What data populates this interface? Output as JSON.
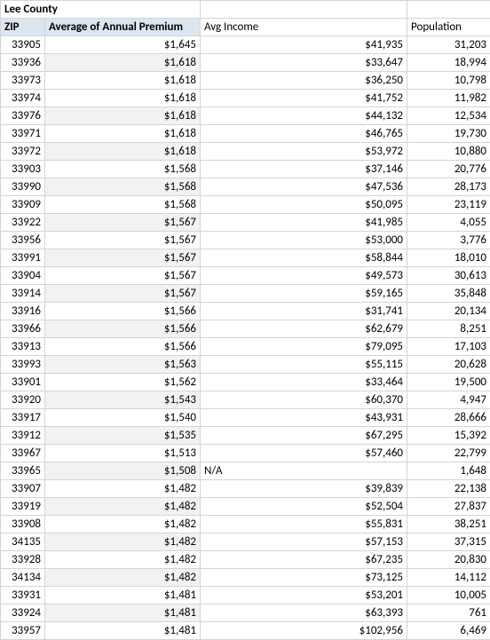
{
  "table": {
    "title": "Lee County",
    "headers": {
      "zip": "ZIP",
      "premium": "Average of Annual Premium",
      "income": "Avg Income",
      "population": "Population"
    },
    "rows": [
      {
        "zip": "33905",
        "premium": "$1,645",
        "income": "$41,935",
        "pop": "31,203",
        "band": false
      },
      {
        "zip": "33936",
        "premium": "$1,618",
        "income": "$33,647",
        "pop": "18,994",
        "band": true
      },
      {
        "zip": "33973",
        "premium": "$1,618",
        "income": "$36,250",
        "pop": "10,798",
        "band": false
      },
      {
        "zip": "33974",
        "premium": "$1,618",
        "income": "$41,752",
        "pop": "11,982",
        "band": false
      },
      {
        "zip": "33976",
        "premium": "$1,618",
        "income": "$44,132",
        "pop": "12,534",
        "band": true
      },
      {
        "zip": "33971",
        "premium": "$1,618",
        "income": "$46,765",
        "pop": "19,730",
        "band": false
      },
      {
        "zip": "33972",
        "premium": "$1,618",
        "income": "$53,972",
        "pop": "10,880",
        "band": true
      },
      {
        "zip": "33903",
        "premium": "$1,568",
        "income": "$37,146",
        "pop": "20,776",
        "band": false
      },
      {
        "zip": "33990",
        "premium": "$1,568",
        "income": "$47,536",
        "pop": "28,173",
        "band": true
      },
      {
        "zip": "33909",
        "premium": "$1,568",
        "income": "$50,095",
        "pop": "23,119",
        "band": false
      },
      {
        "zip": "33922",
        "premium": "$1,567",
        "income": "$41,985",
        "pop": "4,055",
        "band": true
      },
      {
        "zip": "33956",
        "premium": "$1,567",
        "income": "$53,000",
        "pop": "3,776",
        "band": false
      },
      {
        "zip": "33991",
        "premium": "$1,567",
        "income": "$58,844",
        "pop": "18,010",
        "band": true
      },
      {
        "zip": "33904",
        "premium": "$1,567",
        "income": "$49,573",
        "pop": "30,613",
        "band": false
      },
      {
        "zip": "33914",
        "premium": "$1,567",
        "income": "$59,165",
        "pop": "35,848",
        "band": true
      },
      {
        "zip": "33916",
        "premium": "$1,566",
        "income": "$31,741",
        "pop": "20,134",
        "band": false
      },
      {
        "zip": "33966",
        "premium": "$1,566",
        "income": "$62,679",
        "pop": "8,251",
        "band": true
      },
      {
        "zip": "33913",
        "premium": "$1,566",
        "income": "$79,095",
        "pop": "17,103",
        "band": false
      },
      {
        "zip": "33993",
        "premium": "$1,563",
        "income": "$55,115",
        "pop": "20,628",
        "band": true
      },
      {
        "zip": "33901",
        "premium": "$1,562",
        "income": "$33,464",
        "pop": "19,500",
        "band": false
      },
      {
        "zip": "33920",
        "premium": "$1,543",
        "income": "$60,370",
        "pop": "4,947",
        "band": true
      },
      {
        "zip": "33917",
        "premium": "$1,540",
        "income": "$43,931",
        "pop": "28,666",
        "band": false
      },
      {
        "zip": "33912",
        "premium": "$1,535",
        "income": "$67,295",
        "pop": "15,392",
        "band": true
      },
      {
        "zip": "33967",
        "premium": "$1,513",
        "income": "$57,460",
        "pop": "22,799",
        "band": false
      },
      {
        "zip": "33965",
        "premium": "$1,508",
        "income": "N/A",
        "pop": "1,648",
        "band": true,
        "na": true
      },
      {
        "zip": "33907",
        "premium": "$1,482",
        "income": "$39,839",
        "pop": "22,138",
        "band": false
      },
      {
        "zip": "33919",
        "premium": "$1,482",
        "income": "$52,504",
        "pop": "27,837",
        "band": true
      },
      {
        "zip": "33908",
        "premium": "$1,482",
        "income": "$55,831",
        "pop": "38,251",
        "band": false
      },
      {
        "zip": "34135",
        "premium": "$1,482",
        "income": "$57,153",
        "pop": "37,315",
        "band": true
      },
      {
        "zip": "33928",
        "premium": "$1,482",
        "income": "$67,235",
        "pop": "20,830",
        "band": false
      },
      {
        "zip": "34134",
        "premium": "$1,482",
        "income": "$73,125",
        "pop": "14,112",
        "band": true
      },
      {
        "zip": "33931",
        "premium": "$1,481",
        "income": "$53,201",
        "pop": "10,005",
        "band": false
      },
      {
        "zip": "33924",
        "premium": "$1,481",
        "income": "$63,393",
        "pop": "761",
        "band": true
      },
      {
        "zip": "33957",
        "premium": "$1,481",
        "income": "$102,956",
        "pop": "6,469",
        "band": false
      }
    ]
  }
}
